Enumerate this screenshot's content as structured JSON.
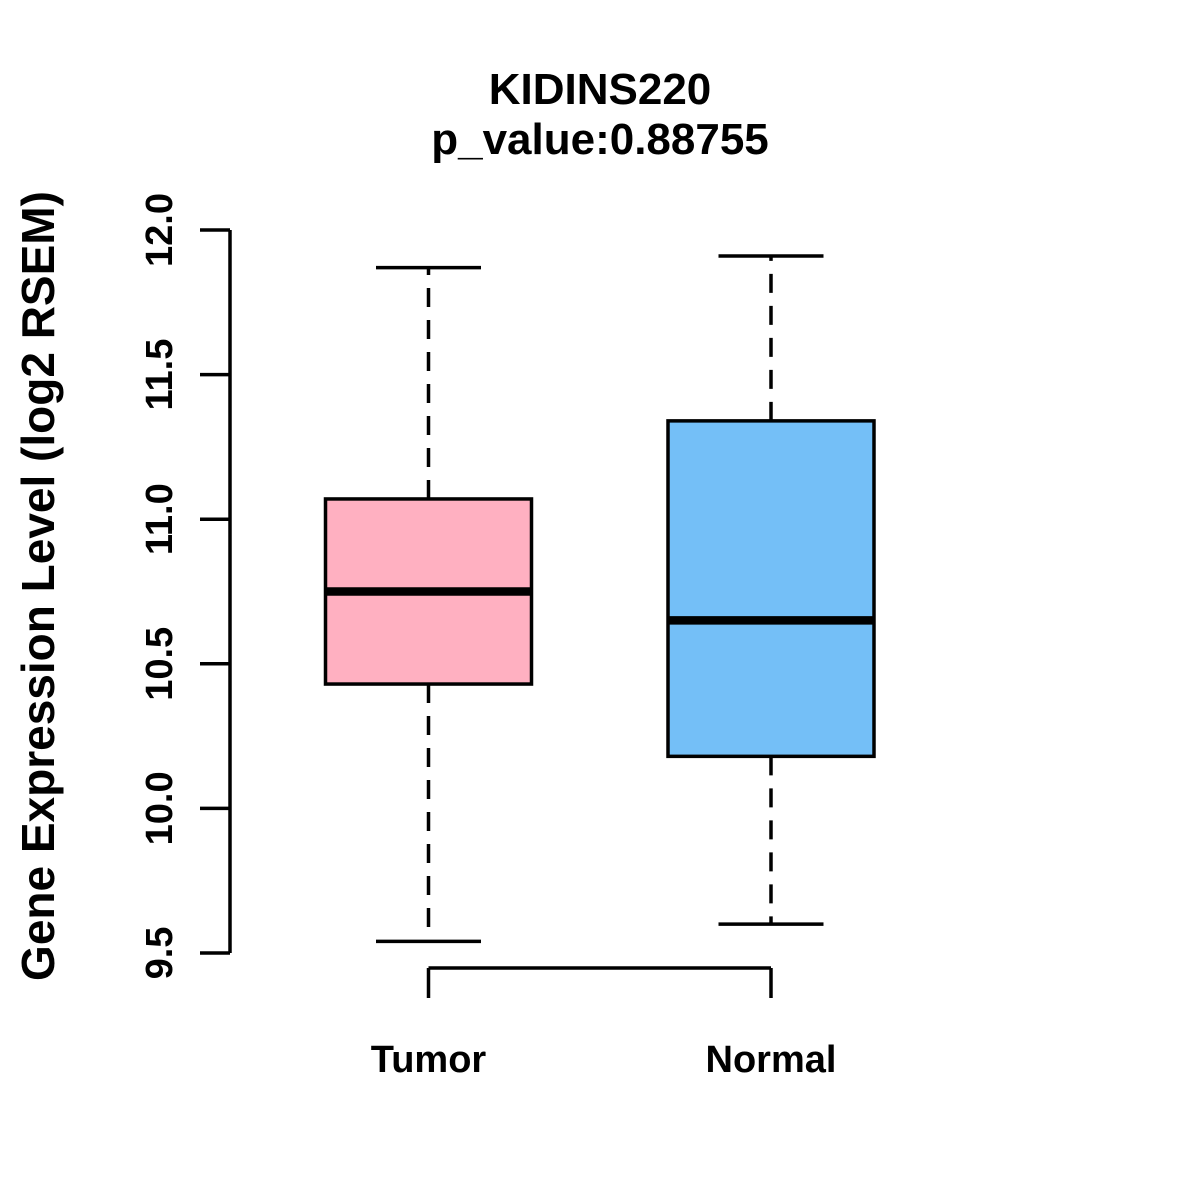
{
  "figure": {
    "background": "#ffffff",
    "line_color": "#000000"
  },
  "chart_data": {
    "type": "boxplot",
    "title": "KIDINS220",
    "subtitle": "p_value:0.88755",
    "p_value": 0.88755,
    "ylabel": "Gene Expression Level (log2 RSEM)",
    "xlabel": "",
    "categories": [
      "Tumor",
      "Normal"
    ],
    "ylim": [
      9.5,
      12.0
    ],
    "yticks": [
      {
        "value": 9.5,
        "label": "9.5"
      },
      {
        "value": 10.0,
        "label": "10.0"
      },
      {
        "value": 10.5,
        "label": "10.5"
      },
      {
        "value": 11.0,
        "label": "11.0"
      },
      {
        "value": 11.5,
        "label": "11.5"
      },
      {
        "value": 12.0,
        "label": "12.0"
      }
    ],
    "grid": false,
    "legend": "none",
    "series": [
      {
        "name": "Tumor",
        "color": "#FFB0C1",
        "stats": {
          "whisker_low": 9.54,
          "q1": 10.43,
          "median": 10.75,
          "q3": 11.07,
          "whisker_high": 11.87
        }
      },
      {
        "name": "Normal",
        "color": "#74BFF7",
        "stats": {
          "whisker_low": 9.6,
          "q1": 10.18,
          "median": 10.65,
          "q3": 11.34,
          "whisker_high": 11.91
        }
      }
    ]
  }
}
